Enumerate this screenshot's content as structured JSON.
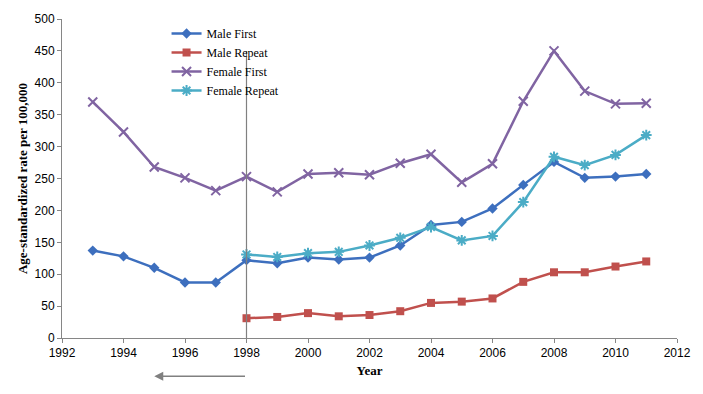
{
  "chart_data": {
    "type": "line",
    "x_label": "Year",
    "y_label": "Age-standardized rate per 100,000",
    "x": [
      1993,
      1994,
      1995,
      1996,
      1997,
      1998,
      1999,
      2000,
      2001,
      2002,
      2003,
      2004,
      2005,
      2006,
      2007,
      2008,
      2009,
      2010,
      2011
    ],
    "series": [
      {
        "name": "Male First",
        "color": "#3d6fbe",
        "marker": "diamond",
        "values": [
          137,
          128,
          110,
          87,
          87,
          122,
          117,
          126,
          123,
          126,
          145,
          177,
          182,
          203,
          240,
          276,
          251,
          253,
          257
        ]
      },
      {
        "name": "Male Repeat",
        "color": "#c0504d",
        "marker": "square",
        "values": [
          null,
          null,
          null,
          null,
          null,
          31,
          33,
          39,
          34,
          36,
          42,
          55,
          57,
          62,
          88,
          103,
          103,
          112,
          120
        ]
      },
      {
        "name": "Female First",
        "color": "#8064a2",
        "marker": "x",
        "values": [
          370,
          323,
          268,
          251,
          231,
          253,
          229,
          257,
          259,
          256,
          274,
          288,
          244,
          273,
          371,
          450,
          387,
          367,
          368
        ]
      },
      {
        "name": "Female Repeat",
        "color": "#4bacc6",
        "marker": "asterisk",
        "values": [
          null,
          null,
          null,
          null,
          null,
          131,
          127,
          133,
          135,
          145,
          157,
          174,
          153,
          160,
          213,
          284,
          271,
          287,
          318
        ]
      }
    ],
    "xlim": [
      1992,
      2012
    ],
    "xticks": [
      1992,
      1994,
      1996,
      1998,
      2000,
      2002,
      2004,
      2006,
      2008,
      2010,
      2012
    ],
    "ylim": [
      0,
      500
    ],
    "yticks": [
      0,
      50,
      100,
      150,
      200,
      250,
      300,
      350,
      400,
      450,
      500
    ],
    "vline": 1998,
    "grid": false,
    "legend": "upper left"
  }
}
